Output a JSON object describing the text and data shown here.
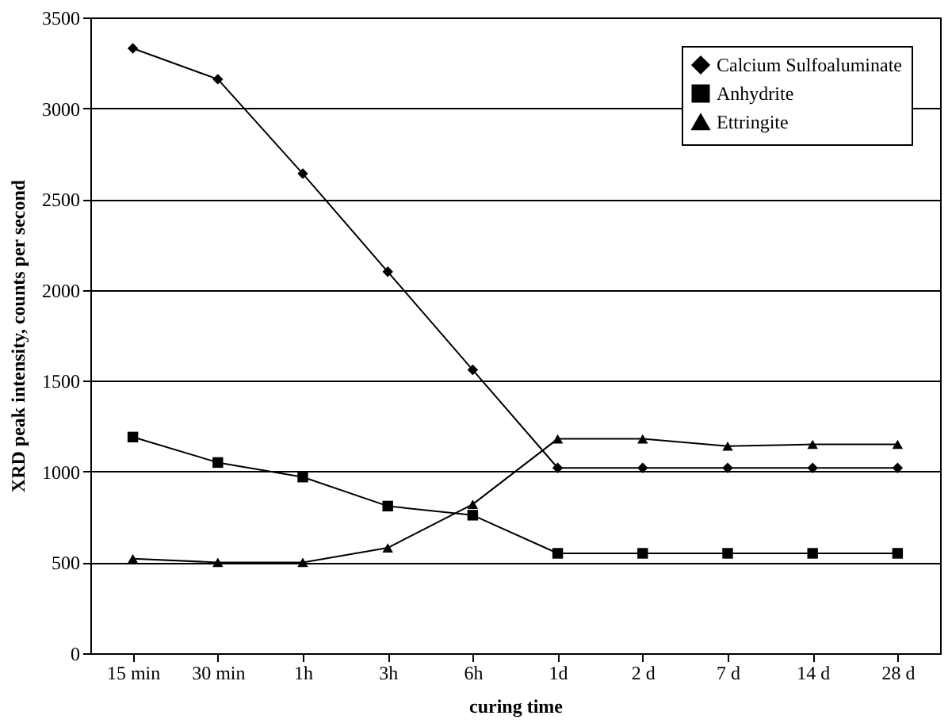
{
  "chart_data": {
    "type": "line",
    "xlabel": "curing time",
    "ylabel": "XRD peak intensity, counts per second",
    "categories": [
      "15 min",
      "30 min",
      "1h",
      "3h",
      "6h",
      "1d",
      "2 d",
      "7 d",
      "14 d",
      "28 d"
    ],
    "series": [
      {
        "name": "Calcium Sulfoaluminate",
        "color": "#000000",
        "marker": "diamond",
        "values": [
          3330,
          3160,
          2640,
          2100,
          1560,
          1020,
          1020,
          1020,
          1020,
          1020
        ]
      },
      {
        "name": "Anhydrite",
        "color": "#000000",
        "marker": "square",
        "values": [
          1190,
          1050,
          970,
          810,
          760,
          550,
          550,
          550,
          550,
          550
        ]
      },
      {
        "name": "Ettringite",
        "color": "#000000",
        "marker": "triangle",
        "values": [
          520,
          500,
          500,
          580,
          820,
          1180,
          1180,
          1140,
          1150,
          1150
        ]
      }
    ],
    "ylim": [
      0,
      3500
    ],
    "yticks": [
      0,
      500,
      1000,
      1500,
      2000,
      2500,
      3000,
      3500
    ],
    "grid": "y",
    "legend": "top right",
    "line_style": "solid"
  }
}
